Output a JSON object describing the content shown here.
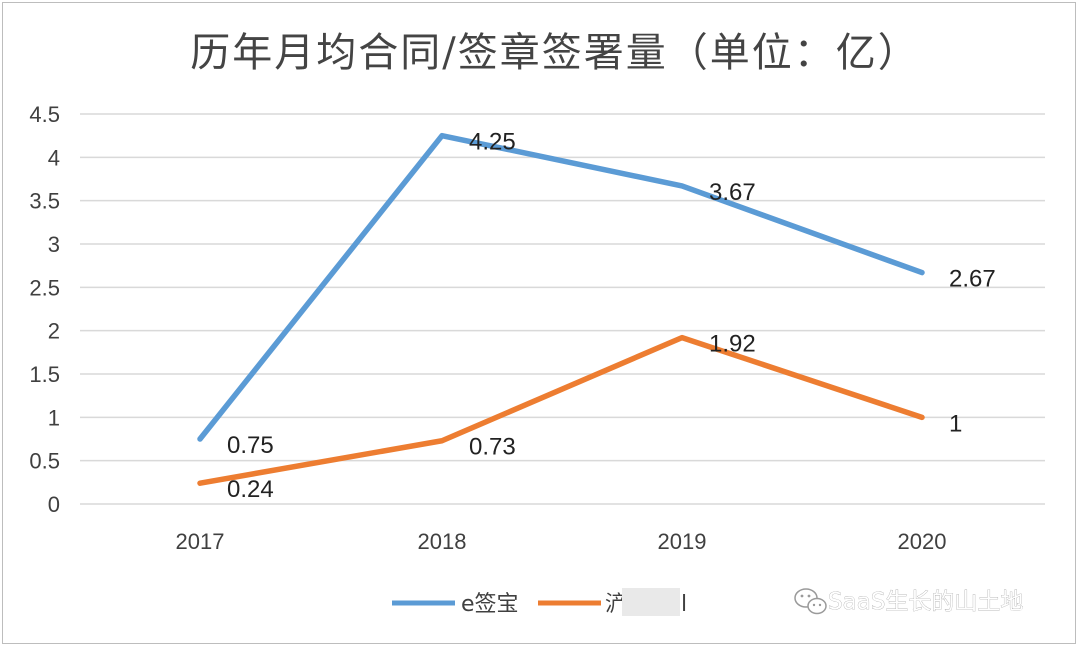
{
  "chart_data": {
    "type": "line",
    "title": "历年月均合同/签章签署量（单位：亿）",
    "categories": [
      "2017",
      "2018",
      "2019",
      "2020"
    ],
    "series": [
      {
        "name": "e签宝",
        "values": [
          0.75,
          4.25,
          3.67,
          2.67
        ],
        "color": "#5b9bd5",
        "labels": [
          "0.75",
          "4.25",
          "3.67",
          "2.67"
        ]
      },
      {
        "name": "",
        "values": [
          0.24,
          0.73,
          1.92,
          1
        ],
        "color": "#ed7d31",
        "labels": [
          "0.24",
          "0.73",
          "1.92",
          "1"
        ]
      }
    ],
    "yticks": [
      "0",
      "0.5",
      "1",
      "1.5",
      "2",
      "2.5",
      "3",
      "3.5",
      "4",
      "4.5"
    ],
    "ylim": [
      0,
      4.5
    ],
    "grid": true,
    "legend_position": "bottom"
  },
  "legend": {
    "series1_label": "e签宝",
    "series2_label_visible": "浐",
    "series2_label_tail": "l"
  },
  "watermark": {
    "text": "SaaS生长的山土地",
    "icon": "wechat-icon"
  }
}
